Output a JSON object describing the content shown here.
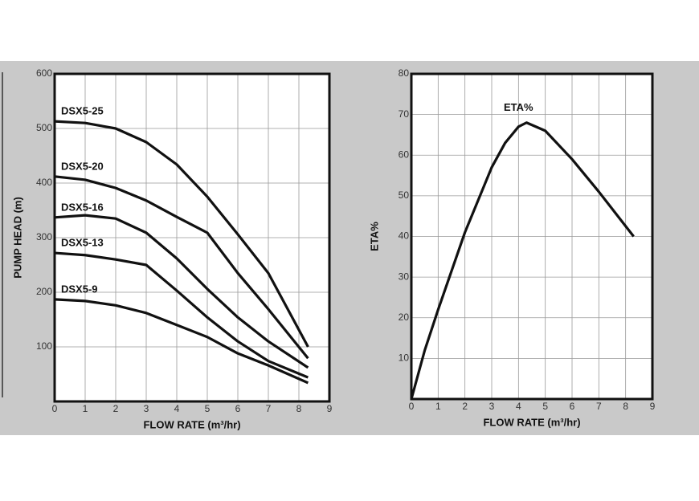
{
  "chart_data": [
    {
      "type": "line",
      "x_label": "FLOW RATE (m³/hr)",
      "y_label": "PUMP HEAD (m)",
      "xlim": [
        0,
        9
      ],
      "xticks": [
        0,
        1,
        2,
        3,
        4,
        5,
        6,
        7,
        8,
        9
      ],
      "ylim": [
        0,
        600
      ],
      "yticks": [
        100,
        200,
        300,
        400,
        500,
        600
      ],
      "grid": true,
      "x": [
        0,
        1,
        2,
        3,
        4,
        5,
        6,
        7,
        8.3
      ],
      "series": [
        {
          "name": "DSX5-25",
          "color": "#111111",
          "values": [
            513,
            510,
            500,
            475,
            434,
            375,
            306,
            235,
            100
          ]
        },
        {
          "name": "DSX5-20",
          "color": "#111111",
          "values": [
            412,
            406,
            391,
            368,
            338,
            309,
            235,
            169,
            79
          ]
        },
        {
          "name": "DSX5-16",
          "color": "#111111",
          "values": [
            337,
            341,
            335,
            309,
            262,
            206,
            154,
            110,
            62
          ]
        },
        {
          "name": "DSX5-13",
          "color": "#111111",
          "values": [
            272,
            268,
            260,
            250,
            203,
            154,
            110,
            74,
            44
          ]
        },
        {
          "name": "DSX5-9",
          "color": "#111111",
          "values": [
            187,
            184,
            176,
            162,
            140,
            118,
            88,
            66,
            34
          ]
        }
      ]
    },
    {
      "type": "line",
      "x_label": "FLOW RATE (m³/hr)",
      "y_label": "ETA%",
      "xlim": [
        0,
        9
      ],
      "xticks": [
        0,
        1,
        2,
        3,
        4,
        5,
        6,
        7,
        8,
        9
      ],
      "ylim": [
        0,
        80
      ],
      "yticks": [
        10,
        20,
        30,
        40,
        50,
        60,
        70,
        80
      ],
      "grid": true,
      "x": [
        0,
        0.5,
        1,
        2,
        3,
        3.5,
        4,
        4.3,
        5,
        6,
        7,
        8.3
      ],
      "series": [
        {
          "name": "ETA%",
          "color": "#111111",
          "values": [
            0,
            12,
            22,
            41,
            57,
            63,
            67,
            68,
            66,
            59,
            51,
            40
          ]
        }
      ]
    }
  ]
}
